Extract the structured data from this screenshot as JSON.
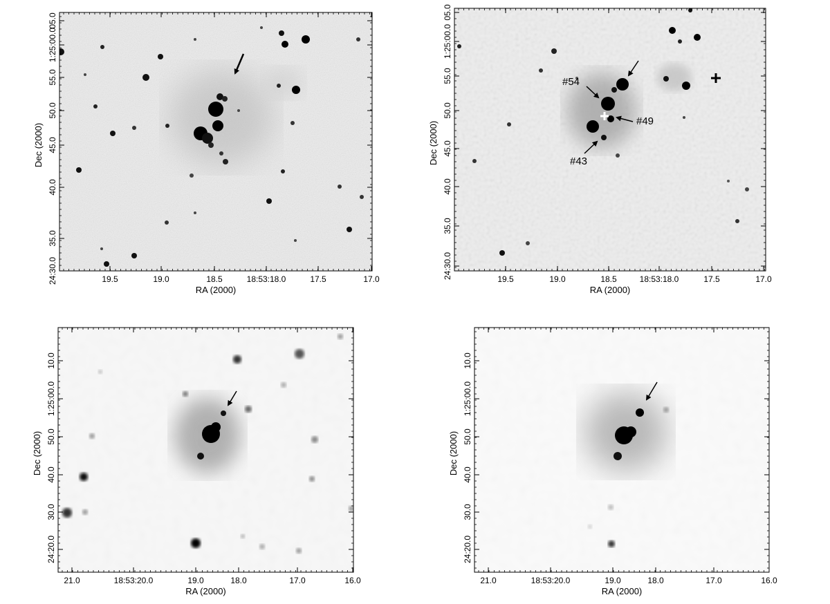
{
  "panels": [
    {
      "id": "top-left",
      "xlabel": "RA (2000)",
      "ylabel": "Dec (2000)",
      "xticks": [
        "19.5",
        "19.0",
        "18.5",
        "18:53:18.0",
        "17.5",
        "17.0"
      ],
      "yticks": [
        "24:30.0",
        "35.0",
        "40.0",
        "45.0",
        "50.0",
        "55.0",
        "1:25:00.0",
        "05.0"
      ],
      "labels": []
    },
    {
      "id": "top-right",
      "xlabel": "RA (2000)",
      "ylabel": "Dec (2000)",
      "xticks": [
        "19.5",
        "19.0",
        "18.5",
        "18:53:18.0",
        "17.5",
        "17.0"
      ],
      "yticks": [
        "24:30.0",
        "35.0",
        "40.0",
        "45.0",
        "50.0",
        "55.0",
        "1:25:00.0",
        "05.0"
      ],
      "labels": [
        "#54",
        "#49",
        "#43"
      ]
    },
    {
      "id": "bottom-left",
      "xlabel": "RA (2000)",
      "ylabel": "Dec (2000)",
      "xticks": [
        "21.0",
        "18:53:20.0",
        "19.0",
        "18.0",
        "17.0",
        "16.0"
      ],
      "yticks": [
        "24:20.0",
        "30.0",
        "40.0",
        "50.0",
        "1:25:00.0",
        "10.0"
      ],
      "labels": []
    },
    {
      "id": "bottom-right",
      "xlabel": "RA (2000)",
      "ylabel": "Dec (2000)",
      "xticks": [
        "21.0",
        "18:53:20.0",
        "19.0",
        "18.0",
        "17.0",
        "16.0"
      ],
      "yticks": [
        "24:20.0",
        "30.0",
        "40.0",
        "50.0",
        "1:25:00.0",
        "10.0"
      ],
      "labels": []
    }
  ]
}
